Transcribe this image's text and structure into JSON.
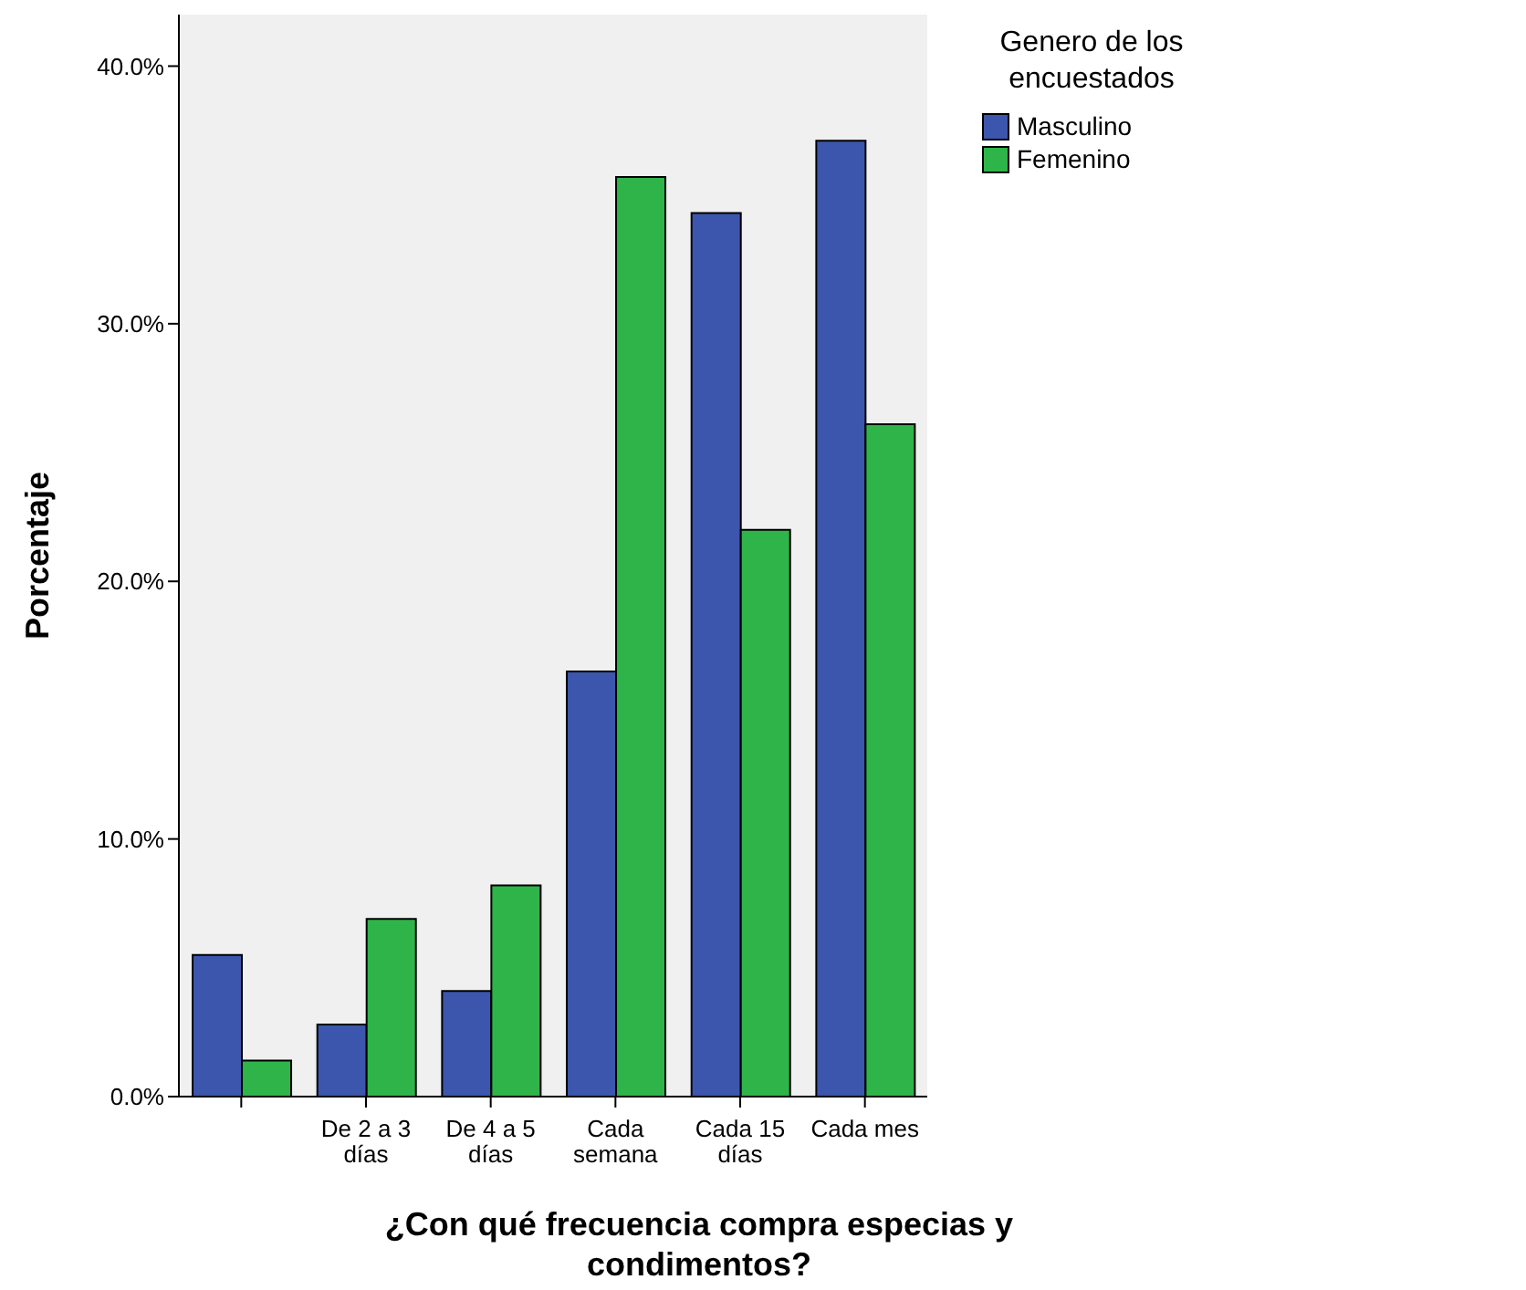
{
  "chart_data": {
    "type": "bar",
    "xlabel": "¿Con qué frecuencia compra especias y condimentos?",
    "ylabel": "Porcentaje",
    "legend_title": "Genero de los encuestados",
    "categories": [
      null,
      "De 2 a 3 días",
      "De 4 a 5 días",
      "Cada semana",
      "Cada 15 días",
      "Cada mes"
    ],
    "series": [
      {
        "name": "Masculino",
        "color": "#3b56ac",
        "values": [
          5.5,
          2.8,
          4.1,
          16.5,
          34.3,
          37.1
        ]
      },
      {
        "name": "Femenino",
        "color": "#2fb44a",
        "values": [
          1.4,
          6.9,
          8.2,
          35.7,
          22.0,
          26.1
        ]
      }
    ],
    "ylim": [
      0,
      42
    ],
    "yticks": [
      {
        "value": 0,
        "label": "0.0%"
      },
      {
        "value": 10,
        "label": "10.0%"
      },
      {
        "value": 20,
        "label": "20.0%"
      },
      {
        "value": 30,
        "label": "30.0%"
      },
      {
        "value": 40,
        "label": "40.0%"
      }
    ],
    "grid": false,
    "legend": "top right"
  }
}
